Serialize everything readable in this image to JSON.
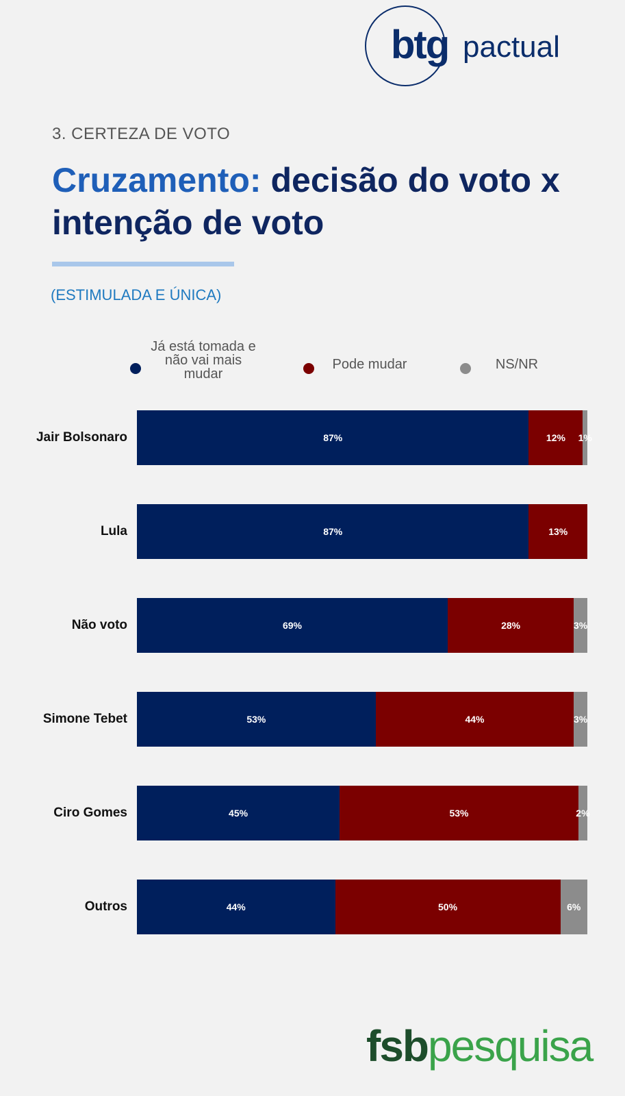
{
  "logos": {
    "btg": "btg",
    "pactual": "pactual",
    "fsb": "fsb",
    "pesquisa": "pesquisa"
  },
  "header": {
    "section_label": "3. CERTEZA DE VOTO",
    "title_accent": "Cruzamento:",
    "title_rest": " decisão do voto x intenção de voto",
    "subtitle": "(ESTIMULADA E ÚNICA)"
  },
  "colors": {
    "decided": "#001f5c",
    "may_change": "#7b0000",
    "ns_nr": "#8c8c8c",
    "title_dark": "#0f2660",
    "title_accent": "#1f5fb8"
  },
  "chart_data": {
    "type": "bar",
    "orientation": "horizontal-stacked-100",
    "categories": [
      "Jair Bolsonaro",
      "Lula",
      "Não voto",
      "Simone Tebet",
      "Ciro Gomes",
      "Outros"
    ],
    "series": [
      {
        "name": "Já está tomada e não vai mais mudar",
        "color": "#001f5c",
        "values": [
          87,
          87,
          69,
          53,
          45,
          44
        ],
        "labels": [
          "87%",
          "87%",
          "69%",
          "53%",
          "45%",
          "44%"
        ]
      },
      {
        "name": "Pode mudar",
        "color": "#7b0000",
        "values": [
          12,
          13,
          28,
          44,
          53,
          50
        ],
        "labels": [
          "12%",
          "13%",
          "28%",
          "44%",
          "53%",
          "50%"
        ]
      },
      {
        "name": "NS/NR",
        "color": "#8c8c8c",
        "values": [
          1,
          0,
          3,
          3,
          2,
          6
        ],
        "labels": [
          "1%",
          "",
          "3%",
          "3%",
          "2%",
          "6%"
        ]
      }
    ],
    "legend_position": "top",
    "grid": false
  }
}
